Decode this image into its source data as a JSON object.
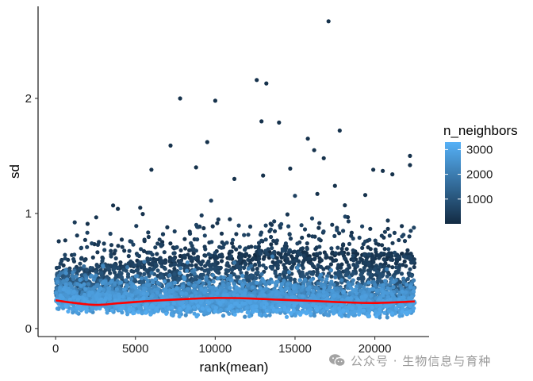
{
  "chart_data": {
    "type": "scatter",
    "title": "",
    "xlabel": "rank(mean)",
    "ylabel": "sd",
    "xlim": [
      -1100,
      23400
    ],
    "ylim": [
      -0.07,
      2.8
    ],
    "x_ticks": [
      0,
      5000,
      10000,
      15000,
      20000
    ],
    "x_tick_labels": [
      "0",
      "5000",
      "10000",
      "15000",
      "20000"
    ],
    "y_ticks": [
      0,
      1,
      2
    ],
    "y_tick_labels": [
      "0",
      "1",
      "2"
    ],
    "grid": false,
    "point_count_approx": 22500,
    "x_range_points": [
      0,
      22500
    ],
    "color": {
      "variable": "n_neighbors",
      "scale": "continuous",
      "low_color": "#132b43",
      "high_color": "#56b1f7",
      "range": [
        0,
        3300
      ],
      "breaks": [
        1000,
        2000,
        3000
      ],
      "break_labels": [
        "1000",
        "2000",
        "3000"
      ]
    },
    "bulk_band": {
      "description": "dense cloud of points; bottom edge ~0.05-0.15, top of dense cloud ~0.6",
      "lower_edge": [
        [
          0,
          0.12
        ],
        [
          1500,
          0.08
        ],
        [
          5000,
          0.07
        ],
        [
          10000,
          0.06
        ],
        [
          15000,
          0.06
        ],
        [
          20000,
          0.05
        ],
        [
          22500,
          0.05
        ]
      ],
      "upper_dense_edge": [
        [
          0,
          0.45
        ],
        [
          2500,
          0.5
        ],
        [
          7500,
          0.58
        ],
        [
          12000,
          0.62
        ],
        [
          17500,
          0.62
        ],
        [
          22500,
          0.6
        ]
      ]
    },
    "outliers": [
      {
        "x": 17100,
        "y": 2.67
      },
      {
        "x": 12600,
        "y": 2.16
      },
      {
        "x": 13200,
        "y": 2.13
      },
      {
        "x": 7800,
        "y": 2.0
      },
      {
        "x": 10000,
        "y": 1.98
      },
      {
        "x": 12900,
        "y": 1.8
      },
      {
        "x": 14000,
        "y": 1.79
      },
      {
        "x": 17800,
        "y": 1.72
      },
      {
        "x": 15800,
        "y": 1.65
      },
      {
        "x": 7200,
        "y": 1.59
      },
      {
        "x": 9500,
        "y": 1.62
      },
      {
        "x": 16200,
        "y": 1.55
      },
      {
        "x": 16800,
        "y": 1.48
      },
      {
        "x": 22200,
        "y": 1.5
      },
      {
        "x": 22200,
        "y": 1.42
      },
      {
        "x": 14700,
        "y": 1.39
      },
      {
        "x": 8800,
        "y": 1.4
      },
      {
        "x": 6000,
        "y": 1.38
      },
      {
        "x": 19900,
        "y": 1.38
      },
      {
        "x": 20500,
        "y": 1.37
      },
      {
        "x": 21100,
        "y": 1.34
      },
      {
        "x": 13000,
        "y": 1.33
      },
      {
        "x": 11200,
        "y": 1.3
      },
      {
        "x": 17500,
        "y": 1.24
      },
      {
        "x": 16400,
        "y": 1.17
      },
      {
        "x": 19400,
        "y": 1.16
      },
      {
        "x": 3600,
        "y": 1.07
      },
      {
        "x": 3900,
        "y": 1.04
      },
      {
        "x": 2000,
        "y": 0.91
      },
      {
        "x": 5300,
        "y": 1.05
      }
    ],
    "trend_line": {
      "color": "#ff0000",
      "points": [
        [
          0,
          0.245
        ],
        [
          1000,
          0.225
        ],
        [
          2500,
          0.205
        ],
        [
          4000,
          0.22
        ],
        [
          6000,
          0.24
        ],
        [
          8000,
          0.255
        ],
        [
          10000,
          0.265
        ],
        [
          12000,
          0.262
        ],
        [
          14000,
          0.25
        ],
        [
          16000,
          0.24
        ],
        [
          18000,
          0.228
        ],
        [
          20000,
          0.222
        ],
        [
          22500,
          0.235
        ]
      ]
    }
  },
  "legend": {
    "title": "n_neighbors",
    "labels": [
      "3000",
      "2000",
      "1000"
    ]
  },
  "watermark": {
    "text": "公众号 · 生物信息与育种",
    "icon": "wechat-icon"
  },
  "colors": {
    "point_dark": "#132b43",
    "point_light": "#56b1f7",
    "trend": "#ff0000",
    "axis": "#000000"
  }
}
